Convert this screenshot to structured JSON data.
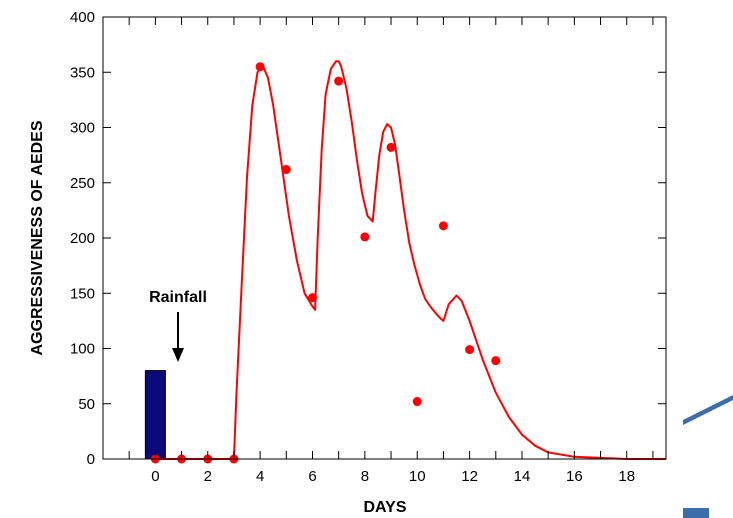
{
  "chart_data": {
    "type": "line",
    "xlabel": "DAYS",
    "ylabel": "AGGRESSIVENESS OF AEDES",
    "xlim": [
      -2,
      19.5
    ],
    "ylim": [
      0,
      400
    ],
    "x_ticks": [
      0,
      2,
      4,
      6,
      8,
      10,
      12,
      14,
      16,
      18
    ],
    "y_ticks": [
      0,
      50,
      100,
      150,
      200,
      250,
      300,
      350,
      400
    ],
    "grid": false,
    "annotation": {
      "text": "Rainfall",
      "x": 0,
      "y": 80
    },
    "bar": {
      "x": 0,
      "value": 80,
      "color": "#0a0a78"
    },
    "points": {
      "color": "#ff0000",
      "x": [
        0,
        1,
        2,
        3,
        4,
        5,
        6,
        7,
        8,
        9,
        10,
        11,
        12,
        13
      ],
      "y": [
        0,
        0,
        0,
        0,
        355,
        262,
        146,
        342,
        201,
        282,
        52,
        211,
        99,
        89
      ]
    },
    "curve": {
      "color": "#ff0000",
      "x": [
        0,
        3,
        3.1,
        3.3,
        3.5,
        3.7,
        3.9,
        4.1,
        4.3,
        4.5,
        4.8,
        5.1,
        5.4,
        5.7,
        6.0,
        6.1,
        6.2,
        6.35,
        6.5,
        6.7,
        6.9,
        7.0,
        7.1,
        7.3,
        7.5,
        7.7,
        7.9,
        8.1,
        8.3,
        8.4,
        8.55,
        8.7,
        8.85,
        9.0,
        9.15,
        9.3,
        9.5,
        9.7,
        9.9,
        10.1,
        10.3,
        10.5,
        10.7,
        10.9,
        11.0,
        11.2,
        11.5,
        11.7,
        12.0,
        12.5,
        13.0,
        13.5,
        14.0,
        14.5,
        15.0,
        16.0,
        17.0,
        18.0,
        19.0,
        19.5
      ],
      "y": [
        0,
        0,
        60,
        160,
        255,
        320,
        350,
        356,
        345,
        320,
        270,
        220,
        180,
        150,
        138,
        135,
        200,
        280,
        330,
        353,
        360,
        360,
        355,
        335,
        305,
        270,
        240,
        220,
        215,
        240,
        275,
        296,
        303,
        300,
        285,
        260,
        225,
        195,
        175,
        158,
        145,
        138,
        132,
        127,
        125,
        140,
        148,
        143,
        125,
        90,
        60,
        38,
        22,
        12,
        6,
        2,
        1,
        0,
        0,
        0
      ]
    }
  },
  "decor": {
    "color": "#3b6ea8"
  }
}
